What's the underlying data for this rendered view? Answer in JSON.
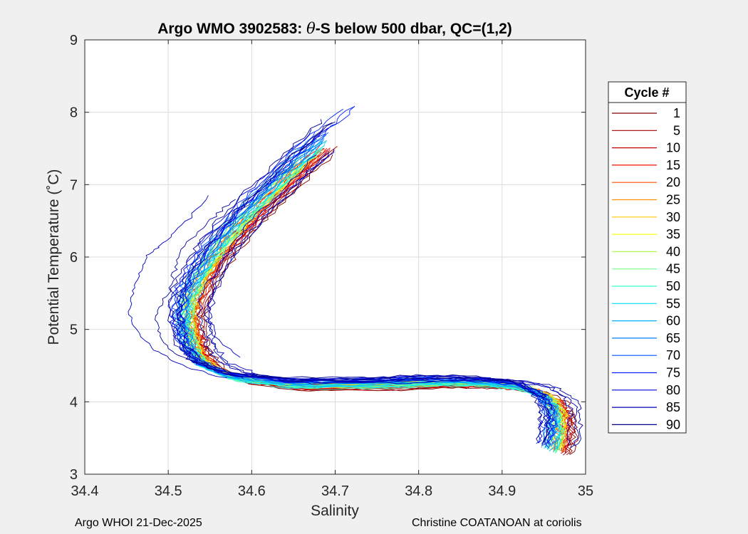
{
  "footer": {
    "left": "Argo WHOI 21-Dec-2025",
    "right": "Christine COATANOAN at coriolis"
  },
  "chart_data": {
    "type": "line",
    "title": "Argo WMO 3902583: θ-S below 500 dbar,  QC=(1,2)",
    "title_prefix": "Argo WMO 3902583: ",
    "title_theta": "θ",
    "title_suffix": "-S below 500 dbar,  QC=(1,2)",
    "xlabel": "Salinity",
    "ylabel": "Potential Temperature (˚C)",
    "xlim": [
      34.4,
      35.0
    ],
    "ylim": [
      3,
      9
    ],
    "xticks": [
      "34.4",
      "34.5",
      "34.6",
      "34.7",
      "34.8",
      "34.9",
      "35"
    ],
    "yticks": [
      "3",
      "4",
      "5",
      "6",
      "7",
      "8",
      "9"
    ],
    "grid": true,
    "legend": {
      "title": "Cycle #",
      "position": "right",
      "entries": [
        {
          "label": "1",
          "color": "#800000"
        },
        {
          "label": "5",
          "color": "#a00000"
        },
        {
          "label": "10",
          "color": "#c80000"
        },
        {
          "label": "15",
          "color": "#f01000"
        },
        {
          "label": "20",
          "color": "#ff5000"
        },
        {
          "label": "25",
          "color": "#ff9000"
        },
        {
          "label": "30",
          "color": "#ffc800"
        },
        {
          "label": "35",
          "color": "#f0ff10"
        },
        {
          "label": "40",
          "color": "#b0ff50"
        },
        {
          "label": "45",
          "color": "#70ff90"
        },
        {
          "label": "50",
          "color": "#30ffd0"
        },
        {
          "label": "55",
          "color": "#00e0ff"
        },
        {
          "label": "60",
          "color": "#00b0ff"
        },
        {
          "label": "65",
          "color": "#0080ff"
        },
        {
          "label": "70",
          "color": "#0050ff"
        },
        {
          "label": "75",
          "color": "#0020ff"
        },
        {
          "label": "80",
          "color": "#0000e0"
        },
        {
          "label": "85",
          "color": "#0000b0"
        },
        {
          "label": "90",
          "color": "#00008f"
        }
      ]
    },
    "profile_shape": {
      "salinity": [
        34.735,
        34.7,
        34.66,
        34.625,
        34.59,
        34.56,
        34.54,
        34.525,
        34.52,
        34.525,
        34.53,
        34.545,
        34.58,
        34.65,
        34.75,
        34.82,
        34.88,
        34.93,
        34.955,
        34.965,
        34.965,
        34.96
      ],
      "theta": [
        8.1,
        7.75,
        7.35,
        6.95,
        6.55,
        6.15,
        5.8,
        5.45,
        5.15,
        4.9,
        4.7,
        4.5,
        4.34,
        4.24,
        4.25,
        4.28,
        4.27,
        4.2,
        4.05,
        3.85,
        3.6,
        3.3
      ]
    },
    "series_offsets": [
      {
        "cycle": "1",
        "ds": 0.02,
        "dt": -0.09,
        "top": 7.45
      },
      {
        "cycle": "5",
        "ds": 0.015,
        "dt": -0.08,
        "top": 7.55
      },
      {
        "cycle": "10",
        "ds": 0.012,
        "dt": -0.07,
        "top": 7.5
      },
      {
        "cycle": "15",
        "ds": 0.01,
        "dt": -0.06,
        "top": 7.55
      },
      {
        "cycle": "20",
        "ds": 0.009,
        "dt": -0.05,
        "top": 7.5
      },
      {
        "cycle": "25",
        "ds": 0.008,
        "dt": -0.04,
        "top": 7.4
      },
      {
        "cycle": "30",
        "ds": 0.006,
        "dt": -0.03,
        "top": 7.3
      },
      {
        "cycle": "35",
        "ds": 0.005,
        "dt": -0.02,
        "top": 7.3
      },
      {
        "cycle": "40",
        "ds": 0.004,
        "dt": -0.04,
        "top": 7.4
      },
      {
        "cycle": "45",
        "ds": 0.003,
        "dt": -0.05,
        "top": 7.5
      },
      {
        "cycle": "50",
        "ds": 0.002,
        "dt": -0.06,
        "top": 7.55
      },
      {
        "cycle": "55",
        "ds": 0.0,
        "dt": -0.04,
        "top": 7.6
      },
      {
        "cycle": "60",
        "ds": -0.002,
        "dt": -0.02,
        "top": 7.65
      },
      {
        "cycle": "65",
        "ds": -0.004,
        "dt": 0.0,
        "top": 7.7
      },
      {
        "cycle": "70",
        "ds": -0.006,
        "dt": 0.02,
        "top": 7.75
      },
      {
        "cycle": "75",
        "ds": -0.008,
        "dt": 0.03,
        "top": 8.1
      },
      {
        "cycle": "80",
        "ds": -0.01,
        "dt": 0.04,
        "top": 7.8
      },
      {
        "cycle": "85",
        "ds": 0.025,
        "dt": 0.01,
        "top": 7.45
      },
      {
        "cycle": "90",
        "ds": -0.012,
        "dt": 0.05,
        "top": 7.9
      }
    ],
    "outliers": [
      {
        "name": "outlier-a",
        "color": "#0000c0",
        "salinity": [
          34.548,
          34.53,
          34.51,
          34.49,
          34.475,
          34.47,
          34.462,
          34.455,
          34.455,
          34.46,
          34.48,
          34.5,
          34.53,
          34.58
        ],
        "theta": [
          6.85,
          6.6,
          6.35,
          6.15,
          6.02,
          5.85,
          5.65,
          5.45,
          5.2,
          5.0,
          4.75,
          4.6,
          4.45,
          4.3
        ]
      },
      {
        "name": "outlier-b",
        "color": "#0000a0",
        "salinity": [
          34.578,
          34.56,
          34.54,
          34.52,
          34.51,
          34.505,
          34.5,
          34.49,
          34.485,
          34.49,
          34.505,
          34.53,
          34.56,
          34.6
        ],
        "theta": [
          6.8,
          6.6,
          6.4,
          6.15,
          5.9,
          5.7,
          5.5,
          5.3,
          5.1,
          4.9,
          4.7,
          4.55,
          4.42,
          4.3
        ]
      },
      {
        "name": "outlier-c",
        "color": "#0000d0",
        "salinity": [
          34.7,
          34.68,
          34.65,
          34.62,
          34.59,
          34.57,
          34.555,
          34.55,
          34.55,
          34.56,
          34.59
        ],
        "theta": [
          7.48,
          7.3,
          7.0,
          6.7,
          6.35,
          6.0,
          5.7,
          5.4,
          5.1,
          4.85,
          4.55
        ]
      }
    ]
  }
}
